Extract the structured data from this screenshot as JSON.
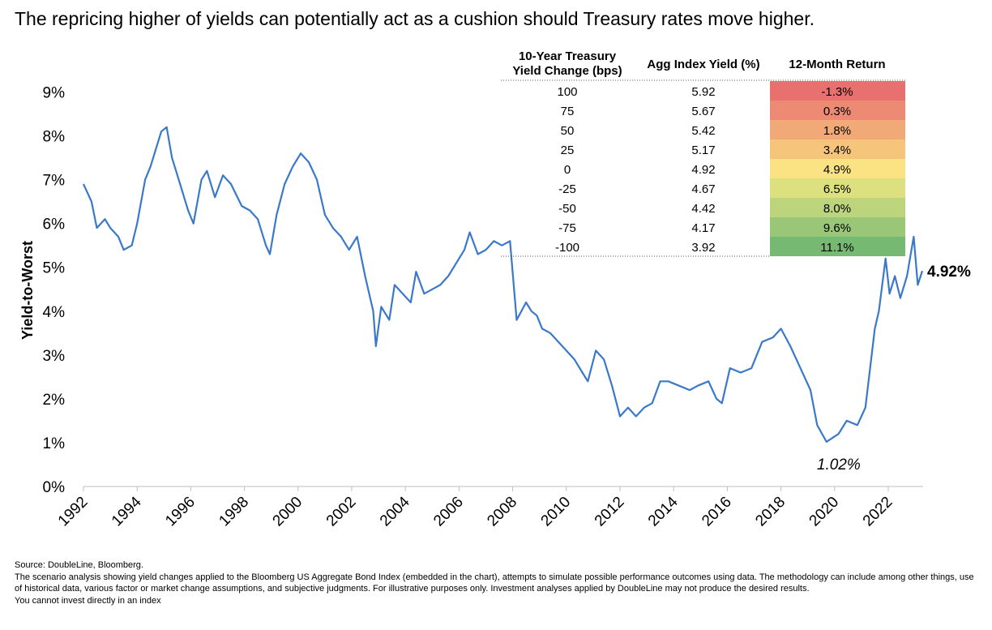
{
  "chart_data": {
    "type": "line",
    "title": "The repricing higher of yields can potentially act as a cushion should Treasury rates move higher.",
    "y_label": "Yield-to-Worst",
    "color": "#3a78c9",
    "xlim": [
      1992,
      2023.3
    ],
    "xticks": [
      1992,
      1994,
      1996,
      1998,
      2000,
      2002,
      2004,
      2006,
      2008,
      2010,
      2012,
      2014,
      2016,
      2018,
      2020,
      2022
    ],
    "ylim": [
      0,
      9.25
    ],
    "yticks": [
      {
        "value": 0,
        "label": "0%"
      },
      {
        "value": 1,
        "label": "1%"
      },
      {
        "value": 2,
        "label": "2%"
      },
      {
        "value": 3,
        "label": "3%"
      },
      {
        "value": 4,
        "label": "4%"
      },
      {
        "value": 5,
        "label": "5%"
      },
      {
        "value": 6,
        "label": "6%"
      },
      {
        "value": 7,
        "label": "7%"
      },
      {
        "value": 8,
        "label": "8%"
      },
      {
        "value": 9,
        "label": "9%"
      }
    ],
    "x": [
      1992.0,
      1992.3,
      1992.5,
      1992.8,
      1993.0,
      1993.3,
      1993.5,
      1993.8,
      1994.0,
      1994.3,
      1994.5,
      1994.9,
      1995.1,
      1995.3,
      1995.6,
      1995.9,
      1996.1,
      1996.4,
      1996.6,
      1996.9,
      1997.2,
      1997.5,
      1997.9,
      1998.2,
      1998.5,
      1998.8,
      1998.95,
      1999.2,
      1999.5,
      1999.8,
      2000.1,
      2000.4,
      2000.7,
      2001.0,
      2001.3,
      2001.6,
      2001.9,
      2002.2,
      2002.5,
      2002.8,
      2002.9,
      2003.1,
      2003.4,
      2003.6,
      2003.9,
      2004.2,
      2004.4,
      2004.7,
      2005.0,
      2005.3,
      2005.6,
      2005.9,
      2006.2,
      2006.4,
      2006.7,
      2007.0,
      2007.3,
      2007.6,
      2007.9,
      2008.15,
      2008.5,
      2008.7,
      2008.9,
      2009.1,
      2009.4,
      2009.7,
      2010.0,
      2010.3,
      2010.6,
      2010.8,
      2011.1,
      2011.4,
      2011.7,
      2012.0,
      2012.3,
      2012.6,
      2012.9,
      2013.2,
      2013.5,
      2013.8,
      2014.2,
      2014.6,
      2014.9,
      2015.3,
      2015.6,
      2015.8,
      2016.1,
      2016.5,
      2016.9,
      2017.3,
      2017.7,
      2018.0,
      2018.35,
      2018.65,
      2019.1,
      2019.35,
      2019.7,
      2020.15,
      2020.45,
      2020.85,
      2021.15,
      2021.5,
      2021.65,
      2021.9,
      2022.05,
      2022.25,
      2022.45,
      2022.7,
      2022.95,
      2023.1,
      2023.27
    ],
    "values": [
      6.9,
      6.5,
      5.9,
      6.1,
      5.9,
      5.7,
      5.4,
      5.5,
      6.0,
      7.0,
      7.3,
      8.1,
      8.2,
      7.5,
      6.9,
      6.3,
      6.0,
      7.0,
      7.2,
      6.6,
      7.1,
      6.9,
      6.4,
      6.3,
      6.1,
      5.5,
      5.3,
      6.2,
      6.9,
      7.3,
      7.6,
      7.4,
      7.0,
      6.2,
      5.9,
      5.7,
      5.4,
      5.7,
      4.8,
      4.0,
      3.2,
      4.1,
      3.8,
      4.6,
      4.4,
      4.2,
      4.9,
      4.4,
      4.5,
      4.6,
      4.8,
      5.1,
      5.4,
      5.8,
      5.3,
      5.4,
      5.6,
      5.5,
      5.6,
      3.8,
      4.2,
      4.0,
      3.9,
      3.6,
      3.5,
      3.3,
      3.1,
      2.9,
      2.6,
      2.4,
      3.1,
      2.9,
      2.3,
      1.6,
      1.8,
      1.6,
      1.8,
      1.9,
      2.4,
      2.4,
      2.3,
      2.2,
      2.3,
      2.4,
      2.0,
      1.9,
      2.7,
      2.6,
      2.7,
      3.3,
      3.4,
      3.6,
      3.2,
      2.8,
      2.2,
      1.4,
      1.02,
      1.2,
      1.5,
      1.4,
      1.8,
      3.6,
      4.0,
      5.2,
      4.4,
      4.8,
      4.3,
      4.8,
      5.7,
      4.6,
      4.92
    ],
    "annotations": [
      {
        "text": "4.92%",
        "x": 2023.27,
        "y": 4.92
      },
      {
        "text": "1.02%",
        "x": 2019.7,
        "y": 1.02
      }
    ],
    "table": {
      "columns": [
        [
          "10-Year Treasury",
          "Yield Change (bps)"
        ],
        [
          "Agg Index Yield (%)"
        ],
        [
          "12-Month Return"
        ]
      ],
      "rows": [
        [
          100,
          5.92,
          "-1.3%"
        ],
        [
          75,
          5.67,
          "0.3%"
        ],
        [
          50,
          5.42,
          "1.8%"
        ],
        [
          25,
          5.17,
          "3.4%"
        ],
        [
          0,
          4.92,
          "4.9%"
        ],
        [
          -25,
          4.67,
          "6.5%"
        ],
        [
          -50,
          4.42,
          "8.0%"
        ],
        [
          -75,
          4.17,
          "9.6%"
        ],
        [
          -100,
          3.92,
          "11.1%"
        ]
      ],
      "return_colors": [
        "#e8706f",
        "#ec8a73",
        "#f0a977",
        "#f5c57c",
        "#fbe383",
        "#dde07f",
        "#bcd47b",
        "#99c777",
        "#76b972"
      ]
    }
  },
  "footer": {
    "source": "Source: DoubleLine, Bloomberg.",
    "note": "The scenario analysis showing yield changes applied to the Bloomberg US Aggregate Bond Index (embedded in the chart), attempts to simulate possible performance outcomes using data. The methodology can include among other things, use of historical data, various factor or market change assumptions, and subjective judgments. For illustrative purposes only. Investment analyses applied by DoubleLine may not produce the desired results.",
    "disclaimer": "You cannot invest directly in an index"
  }
}
